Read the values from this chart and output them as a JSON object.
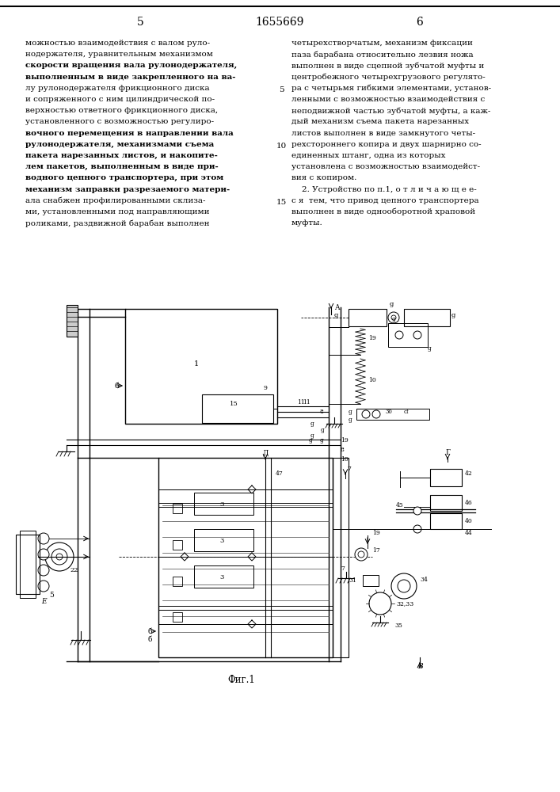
{
  "page_number_left": "5",
  "patent_number": "1655669",
  "page_number_right": "6",
  "text_left": "можностью взаимодействия с валом руло-\nнодержателя, уравнительным механизмом\nскорости вращения вала рулонодержателя,\nвыполненным в виде закрепленного на ва-\nлу рулонодержателя фрикционного диска\nи сопряженного с ним цилиндрической по-\nверхностью ответного фрикционного диска,\nустановленного с возможностью регулиро-\nвочного перемещения в направлении вала\nрулонодержателя, механизмами съема\nпакета нарезанных листов, и накопите-\nлем пакетов, выполненным в виде при-\nводного цепного транспортера, при этом\nмеханизм заправки разрезаемого матери-\nала снабжен профилированными склиза-\nми, установленными под направляющими\nроликами, раздвижной барабан выполнен",
  "text_right": "четырехстворчатым, механизм фиксации\nпаза барабана относительно лезвия ножа\nвыполнен в виде сцепной зубчатой муфты и\nцентробежного четырехгрузового регулято-\nра с четырьмя гибкими элементами, установ-\nленными с возможностью взаимодействия с\nнеподвижной частью зубчатой муфты, а каж-\nдый механизм съема пакета нарезанных\nлистов выполнен в виде замкнутого четы-\nрехстороннего копира и двух шарнирно со-\nединенных штанг, одна из которых\nустановлена с возможностью взаимодейст-\nвия с копиром.\n    2. Устройство по п.1, о т л и ч а ю щ е е-\nс я  тем, что привод цепного транспортера\nвыполнен в виде однооборотной храповой\nмуфты.",
  "figure_label": "Фиг.1",
  "background_color": "#ffffff",
  "text_color": "#000000"
}
